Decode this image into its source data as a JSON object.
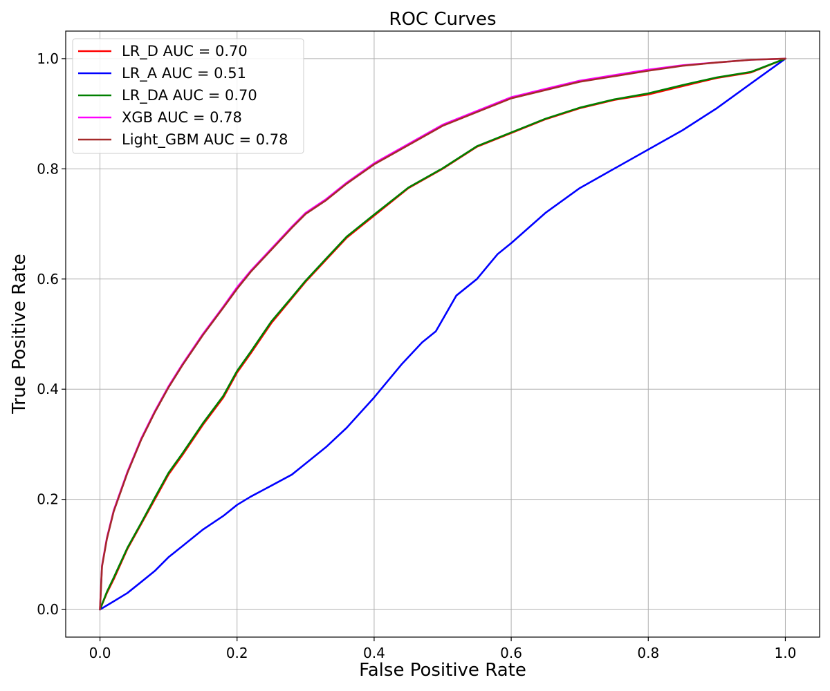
{
  "chart_data": {
    "type": "line",
    "title": "ROC Curves",
    "xlabel": "False Positive Rate",
    "ylabel": "True Positive Rate",
    "xlim": [
      -0.05,
      1.05
    ],
    "ylim": [
      -0.05,
      1.05
    ],
    "xticks": [
      0.0,
      0.2,
      0.4,
      0.6,
      0.8,
      1.0
    ],
    "yticks": [
      0.0,
      0.2,
      0.4,
      0.6,
      0.8,
      1.0
    ],
    "xtick_labels": [
      "0.0",
      "0.2",
      "0.4",
      "0.6",
      "0.8",
      "1.0"
    ],
    "ytick_labels": [
      "0.0",
      "0.2",
      "0.4",
      "0.6",
      "0.8",
      "1.0"
    ],
    "grid": true,
    "legend_position": "top-left",
    "series": [
      {
        "name": "LR_D AUC = 0.70",
        "color": "#ff0000",
        "x": [
          0,
          0.01,
          0.02,
          0.04,
          0.06,
          0.08,
          0.1,
          0.12,
          0.15,
          0.18,
          0.2,
          0.22,
          0.25,
          0.28,
          0.3,
          0.33,
          0.36,
          0.4,
          0.45,
          0.5,
          0.55,
          0.6,
          0.65,
          0.7,
          0.75,
          0.8,
          0.85,
          0.9,
          0.95,
          1.0
        ],
        "y": [
          0,
          0.03,
          0.055,
          0.11,
          0.155,
          0.2,
          0.245,
          0.28,
          0.335,
          0.385,
          0.43,
          0.465,
          0.52,
          0.565,
          0.595,
          0.635,
          0.675,
          0.715,
          0.765,
          0.8,
          0.84,
          0.865,
          0.89,
          0.91,
          0.925,
          0.935,
          0.95,
          0.965,
          0.975,
          1.0
        ]
      },
      {
        "name": "LR_A AUC = 0.51",
        "color": "#0000ff",
        "x": [
          0,
          0.02,
          0.04,
          0.06,
          0.08,
          0.1,
          0.12,
          0.15,
          0.18,
          0.2,
          0.22,
          0.25,
          0.28,
          0.3,
          0.33,
          0.36,
          0.4,
          0.44,
          0.47,
          0.49,
          0.52,
          0.55,
          0.58,
          0.6,
          0.65,
          0.7,
          0.75,
          0.8,
          0.85,
          0.9,
          0.95,
          1.0
        ],
        "y": [
          0,
          0.015,
          0.03,
          0.05,
          0.07,
          0.095,
          0.115,
          0.145,
          0.17,
          0.19,
          0.205,
          0.225,
          0.245,
          0.265,
          0.295,
          0.33,
          0.385,
          0.445,
          0.485,
          0.505,
          0.57,
          0.6,
          0.645,
          0.665,
          0.72,
          0.765,
          0.8,
          0.835,
          0.87,
          0.91,
          0.955,
          1.0
        ]
      },
      {
        "name": "LR_DA AUC = 0.70",
        "color": "#008000",
        "x": [
          0,
          0.01,
          0.02,
          0.04,
          0.06,
          0.08,
          0.1,
          0.12,
          0.15,
          0.18,
          0.2,
          0.22,
          0.25,
          0.28,
          0.3,
          0.33,
          0.36,
          0.4,
          0.45,
          0.5,
          0.55,
          0.6,
          0.65,
          0.7,
          0.75,
          0.8,
          0.85,
          0.9,
          0.95,
          1.0
        ],
        "y": [
          0,
          0.032,
          0.058,
          0.112,
          0.157,
          0.203,
          0.248,
          0.283,
          0.338,
          0.388,
          0.433,
          0.468,
          0.523,
          0.567,
          0.597,
          0.637,
          0.677,
          0.717,
          0.766,
          0.801,
          0.841,
          0.866,
          0.891,
          0.911,
          0.926,
          0.937,
          0.952,
          0.966,
          0.976,
          1.0
        ]
      },
      {
        "name": "XGB AUC = 0.78",
        "color": "#ff00ff",
        "x": [
          0,
          0.003,
          0.01,
          0.02,
          0.04,
          0.06,
          0.08,
          0.1,
          0.12,
          0.15,
          0.18,
          0.2,
          0.22,
          0.25,
          0.28,
          0.3,
          0.33,
          0.36,
          0.4,
          0.45,
          0.5,
          0.55,
          0.6,
          0.65,
          0.7,
          0.75,
          0.8,
          0.85,
          0.9,
          0.95,
          1.0
        ],
        "y": [
          0,
          0.08,
          0.13,
          0.18,
          0.25,
          0.31,
          0.36,
          0.405,
          0.445,
          0.5,
          0.55,
          0.585,
          0.615,
          0.655,
          0.695,
          0.72,
          0.745,
          0.775,
          0.81,
          0.845,
          0.88,
          0.905,
          0.93,
          0.945,
          0.96,
          0.97,
          0.98,
          0.988,
          0.993,
          0.998,
          1.0
        ]
      },
      {
        "name": "Light_GBM AUC = 0.78",
        "color": "#a52a2a",
        "x": [
          0,
          0.003,
          0.01,
          0.02,
          0.04,
          0.06,
          0.08,
          0.1,
          0.12,
          0.15,
          0.18,
          0.2,
          0.22,
          0.25,
          0.28,
          0.3,
          0.33,
          0.36,
          0.4,
          0.45,
          0.5,
          0.55,
          0.6,
          0.65,
          0.7,
          0.75,
          0.8,
          0.85,
          0.9,
          0.95,
          1.0
        ],
        "y": [
          0,
          0.078,
          0.128,
          0.178,
          0.248,
          0.308,
          0.358,
          0.403,
          0.443,
          0.498,
          0.548,
          0.582,
          0.613,
          0.653,
          0.693,
          0.718,
          0.743,
          0.773,
          0.808,
          0.843,
          0.878,
          0.903,
          0.928,
          0.943,
          0.958,
          0.968,
          0.978,
          0.987,
          0.993,
          0.998,
          1.0
        ]
      }
    ]
  }
}
